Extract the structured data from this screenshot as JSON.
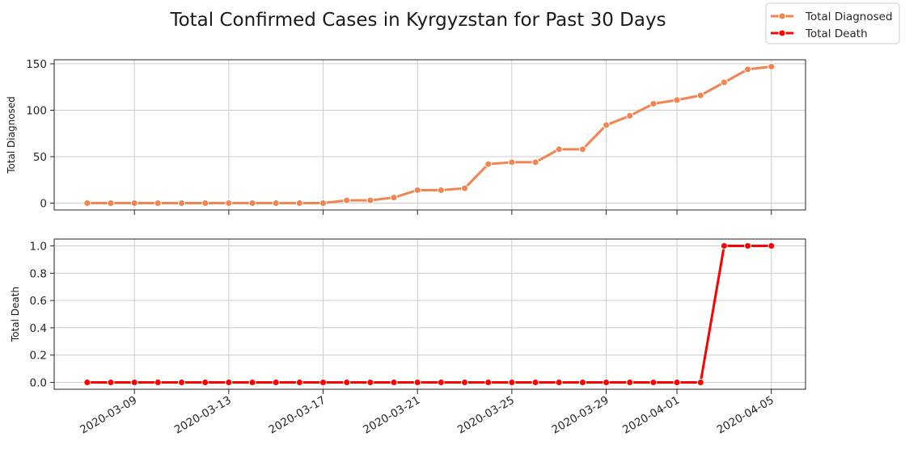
{
  "chart_data": [
    {
      "type": "line",
      "title": "Total Confirmed Cases in Kyrgyzstan for Past 30 Days",
      "ylabel": "Total Diagnosed",
      "xlabel": "",
      "grid": true,
      "legend_position": "top-right",
      "ylim": [
        -7.35,
        154.35
      ],
      "yticks": [
        0,
        50,
        100,
        150
      ],
      "ytick_labels": [
        "0",
        "50",
        "100",
        "150"
      ],
      "series": [
        {
          "name": "Total Diagnosed",
          "color": "#f4834f",
          "x": [
            "2020-03-07",
            "2020-03-08",
            "2020-03-09",
            "2020-03-10",
            "2020-03-11",
            "2020-03-12",
            "2020-03-13",
            "2020-03-14",
            "2020-03-15",
            "2020-03-16",
            "2020-03-17",
            "2020-03-18",
            "2020-03-19",
            "2020-03-20",
            "2020-03-21",
            "2020-03-22",
            "2020-03-23",
            "2020-03-24",
            "2020-03-25",
            "2020-03-26",
            "2020-03-27",
            "2020-03-28",
            "2020-03-29",
            "2020-03-30",
            "2020-03-31",
            "2020-04-01",
            "2020-04-02",
            "2020-04-03",
            "2020-04-04",
            "2020-04-05"
          ],
          "values": [
            0,
            0,
            0,
            0,
            0,
            0,
            0,
            0,
            0,
            0,
            0,
            3,
            3,
            6,
            14,
            14,
            16,
            42,
            44,
            44,
            58,
            58,
            84,
            94,
            107,
            111,
            116,
            130,
            144,
            147
          ]
        }
      ]
    },
    {
      "type": "line",
      "ylabel": "Total Death",
      "xlabel": "",
      "grid": true,
      "ylim": [
        -0.05,
        1.05
      ],
      "yticks": [
        0,
        0.2,
        0.4,
        0.6,
        0.8,
        1.0
      ],
      "ytick_labels": [
        "0.0",
        "0.2",
        "0.4",
        "0.6",
        "0.8",
        "1.0"
      ],
      "xticks": [
        "2020-03-09",
        "2020-03-13",
        "2020-03-17",
        "2020-03-21",
        "2020-03-25",
        "2020-03-29",
        "2020-04-01",
        "2020-04-05"
      ],
      "series": [
        {
          "name": "Total Death",
          "color": "#ff0000",
          "x": [
            "2020-03-07",
            "2020-03-08",
            "2020-03-09",
            "2020-03-10",
            "2020-03-11",
            "2020-03-12",
            "2020-03-13",
            "2020-03-14",
            "2020-03-15",
            "2020-03-16",
            "2020-03-17",
            "2020-03-18",
            "2020-03-19",
            "2020-03-20",
            "2020-03-21",
            "2020-03-22",
            "2020-03-23",
            "2020-03-24",
            "2020-03-25",
            "2020-03-26",
            "2020-03-27",
            "2020-03-28",
            "2020-03-29",
            "2020-03-30",
            "2020-03-31",
            "2020-04-01",
            "2020-04-02",
            "2020-04-03",
            "2020-04-04",
            "2020-04-05"
          ],
          "values": [
            0,
            0,
            0,
            0,
            0,
            0,
            0,
            0,
            0,
            0,
            0,
            0,
            0,
            0,
            0,
            0,
            0,
            0,
            0,
            0,
            0,
            0,
            0,
            0,
            0,
            0,
            0,
            1,
            1,
            1
          ]
        }
      ]
    }
  ]
}
